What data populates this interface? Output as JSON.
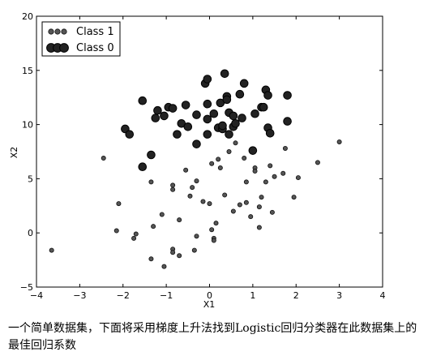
{
  "chart_data": {
    "type": "scatter",
    "title": "",
    "xlabel": "X1",
    "ylabel": "X2",
    "xlim": [
      -4,
      4
    ],
    "ylim": [
      -5,
      20
    ],
    "x_ticks": [
      -4,
      -3,
      -2,
      -1,
      0,
      1,
      2,
      3,
      4
    ],
    "y_ticks": [
      -5,
      0,
      5,
      10,
      15,
      20
    ],
    "x_tick_labels": [
      "−4",
      "−3",
      "−2",
      "−1",
      "0",
      "1",
      "2",
      "3",
      "4"
    ],
    "y_tick_labels": [
      "−5",
      "0",
      "5",
      "10",
      "15",
      "20"
    ],
    "grid": false,
    "legend_position": "top-left",
    "series": [
      {
        "name": "Class 1",
        "marker": "small-circle",
        "color": "#3a3a3a",
        "points": [
          [
            -3.65,
            -1.6
          ],
          [
            -2.45,
            6.9
          ],
          [
            -2.1,
            2.7
          ],
          [
            -2.15,
            0.2
          ],
          [
            -1.7,
            -0.1
          ],
          [
            -1.75,
            -0.5
          ],
          [
            -1.35,
            4.7
          ],
          [
            -1.35,
            -2.4
          ],
          [
            -1.3,
            0.6
          ],
          [
            -1.1,
            1.7
          ],
          [
            -1.05,
            -3.1
          ],
          [
            -0.85,
            4.4
          ],
          [
            -0.85,
            4.0
          ],
          [
            -0.85,
            -1.5
          ],
          [
            -0.85,
            -1.8
          ],
          [
            -0.7,
            1.2
          ],
          [
            -0.7,
            -2.1
          ],
          [
            -0.55,
            5.8
          ],
          [
            -0.45,
            3.4
          ],
          [
            -0.4,
            4.2
          ],
          [
            -0.3,
            4.8
          ],
          [
            -0.3,
            -0.3
          ],
          [
            -0.35,
            -1.6
          ],
          [
            -0.15,
            2.9
          ],
          [
            0.0,
            2.7
          ],
          [
            0.05,
            6.4
          ],
          [
            0.05,
            0.3
          ],
          [
            0.1,
            -0.5
          ],
          [
            0.1,
            -0.7
          ],
          [
            0.15,
            0.9
          ],
          [
            0.2,
            6.8
          ],
          [
            0.25,
            6.0
          ],
          [
            0.35,
            3.5
          ],
          [
            0.45,
            7.5
          ],
          [
            0.55,
            2.0
          ],
          [
            0.6,
            8.3
          ],
          [
            0.7,
            2.6
          ],
          [
            0.8,
            6.9
          ],
          [
            0.85,
            4.7
          ],
          [
            0.85,
            2.8
          ],
          [
            0.95,
            1.5
          ],
          [
            1.05,
            6.0
          ],
          [
            1.15,
            0.5
          ],
          [
            1.15,
            2.4
          ],
          [
            1.2,
            3.3
          ],
          [
            1.3,
            4.7
          ],
          [
            1.4,
            6.2
          ],
          [
            1.45,
            1.9
          ],
          [
            1.5,
            5.2
          ],
          [
            1.7,
            5.5
          ],
          [
            1.75,
            7.8
          ],
          [
            1.95,
            3.3
          ],
          [
            2.05,
            5.1
          ],
          [
            2.5,
            6.5
          ],
          [
            3.0,
            8.4
          ],
          [
            1.05,
            5.7
          ]
        ]
      },
      {
        "name": "Class 0",
        "marker": "large-circle",
        "color": "#111111",
        "points": [
          [
            -1.95,
            9.6
          ],
          [
            -1.85,
            9.1
          ],
          [
            -1.55,
            12.2
          ],
          [
            -1.55,
            6.1
          ],
          [
            -1.35,
            7.2
          ],
          [
            -1.25,
            10.6
          ],
          [
            -1.2,
            11.3
          ],
          [
            -1.05,
            10.8
          ],
          [
            -0.95,
            11.6
          ],
          [
            -0.85,
            11.5
          ],
          [
            -0.75,
            9.1
          ],
          [
            -0.65,
            10.1
          ],
          [
            -0.55,
            11.8
          ],
          [
            -0.5,
            9.8
          ],
          [
            -0.3,
            8.2
          ],
          [
            -0.3,
            10.9
          ],
          [
            -0.1,
            13.8
          ],
          [
            -0.05,
            14.2
          ],
          [
            -0.05,
            9.1
          ],
          [
            -0.05,
            10.5
          ],
          [
            0.1,
            11.0
          ],
          [
            0.2,
            9.7
          ],
          [
            0.25,
            12.0
          ],
          [
            0.3,
            9.6
          ],
          [
            0.35,
            14.7
          ],
          [
            0.4,
            12.6
          ],
          [
            0.4,
            12.3
          ],
          [
            0.45,
            9.1
          ],
          [
            0.45,
            11.1
          ],
          [
            0.55,
            10.8
          ],
          [
            0.55,
            9.8
          ],
          [
            0.6,
            10.1
          ],
          [
            0.7,
            12.8
          ],
          [
            0.75,
            10.6
          ],
          [
            0.8,
            13.8
          ],
          [
            1.0,
            7.6
          ],
          [
            1.05,
            11.0
          ],
          [
            1.2,
            11.6
          ],
          [
            1.25,
            11.6
          ],
          [
            1.3,
            13.2
          ],
          [
            1.35,
            9.7
          ],
          [
            1.35,
            12.7
          ],
          [
            1.4,
            9.2
          ],
          [
            1.8,
            10.3
          ],
          [
            1.8,
            12.7
          ],
          [
            -0.05,
            11.9
          ],
          [
            0.3,
            9.9
          ]
        ]
      }
    ]
  },
  "caption": "一个简单数据集，下面将采用梯度上升法找到Logistic回归分类器在此数据集上的最佳回归系数"
}
